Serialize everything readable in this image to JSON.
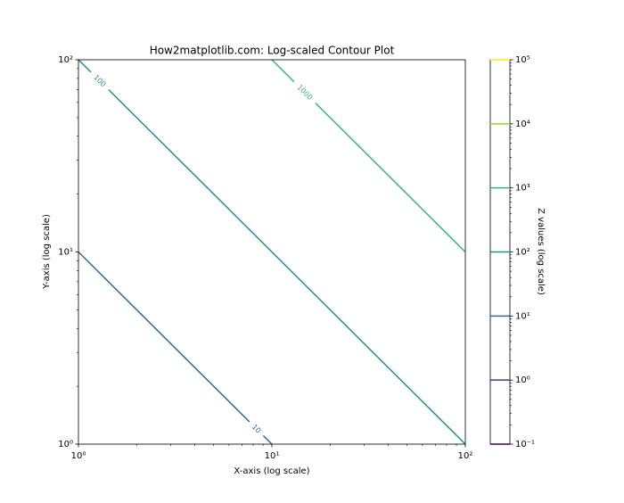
{
  "chart_data": {
    "type": "contour",
    "title": "How2matplotlib.com: Log-scaled Contour Plot",
    "xlabel": "X-axis (log scale)",
    "ylabel": "Y-axis (log scale)",
    "colorbar_label": "Z values (log scale)",
    "xscale": "log",
    "yscale": "log",
    "cscale": "log",
    "xlim": [
      1,
      100
    ],
    "ylim": [
      1,
      100
    ],
    "xticks": [
      {
        "value": 1,
        "label": "10⁰"
      },
      {
        "value": 10,
        "label": "10¹"
      },
      {
        "value": 100,
        "label": "10²"
      }
    ],
    "yticks": [
      {
        "value": 1,
        "label": "10⁰"
      },
      {
        "value": 10,
        "label": "10¹"
      },
      {
        "value": 100,
        "label": "10²"
      }
    ],
    "clim": [
      0.1,
      100000
    ],
    "cticks": [
      {
        "value": 0.1,
        "label": "10⁻¹"
      },
      {
        "value": 1,
        "label": "10⁰"
      },
      {
        "value": 10,
        "label": "10¹"
      },
      {
        "value": 100,
        "label": "10²"
      },
      {
        "value": 1000,
        "label": "10³"
      },
      {
        "value": 10000,
        "label": "10⁴"
      },
      {
        "value": 100000,
        "label": "10⁵"
      }
    ],
    "levels": [
      0.1,
      1,
      10,
      100,
      1000,
      10000,
      100000
    ],
    "level_colors": [
      "#440154",
      "#443983",
      "#31688e",
      "#21918c",
      "#35b779",
      "#90d743",
      "#fde725"
    ],
    "contours": [
      {
        "level": 10,
        "label": "10",
        "color": "#31688e",
        "x": [
          1,
          10
        ],
        "y": [
          10,
          1
        ]
      },
      {
        "level": 100,
        "label": "100",
        "color": "#21918c",
        "x": [
          1,
          100
        ],
        "y": [
          100,
          1
        ]
      },
      {
        "level": 1000,
        "label": "1000",
        "color": "#35b779",
        "x": [
          10,
          100
        ],
        "y": [
          100,
          10
        ]
      }
    ]
  }
}
